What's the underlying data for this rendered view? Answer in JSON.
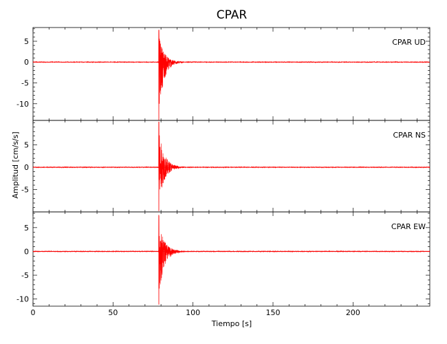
{
  "chart_data": {
    "type": "line",
    "title": "CPAR",
    "xlabel": "Tiempo [s]",
    "ylabel": "Amplitud [cm/s/s]",
    "xlim": [
      0,
      248
    ],
    "xticks": [
      0,
      50,
      100,
      150,
      200
    ],
    "grid": false,
    "color": "#ff0000",
    "signal": {
      "arrival_s": 78.5,
      "decay_s": 3.5,
      "coda_end_s": 95
    },
    "panels": [
      {
        "label": "CPAR   UD",
        "ylim": [
          -14,
          8.3
        ],
        "yticks": [
          5,
          0,
          -5,
          -10
        ],
        "peak_positive": 7.8,
        "peak_negative": -14
      },
      {
        "label": "CPAR   NS",
        "ylim": [
          -10,
          10.5
        ],
        "yticks": [
          5,
          0,
          -5
        ],
        "peak_positive": 10.2,
        "peak_negative": -9.8
      },
      {
        "label": "CPAR   EW",
        "ylim": [
          -11.5,
          8.3
        ],
        "yticks": [
          5,
          0,
          -5,
          -10
        ],
        "peak_positive": 7.6,
        "peak_negative": -11.2
      }
    ]
  }
}
